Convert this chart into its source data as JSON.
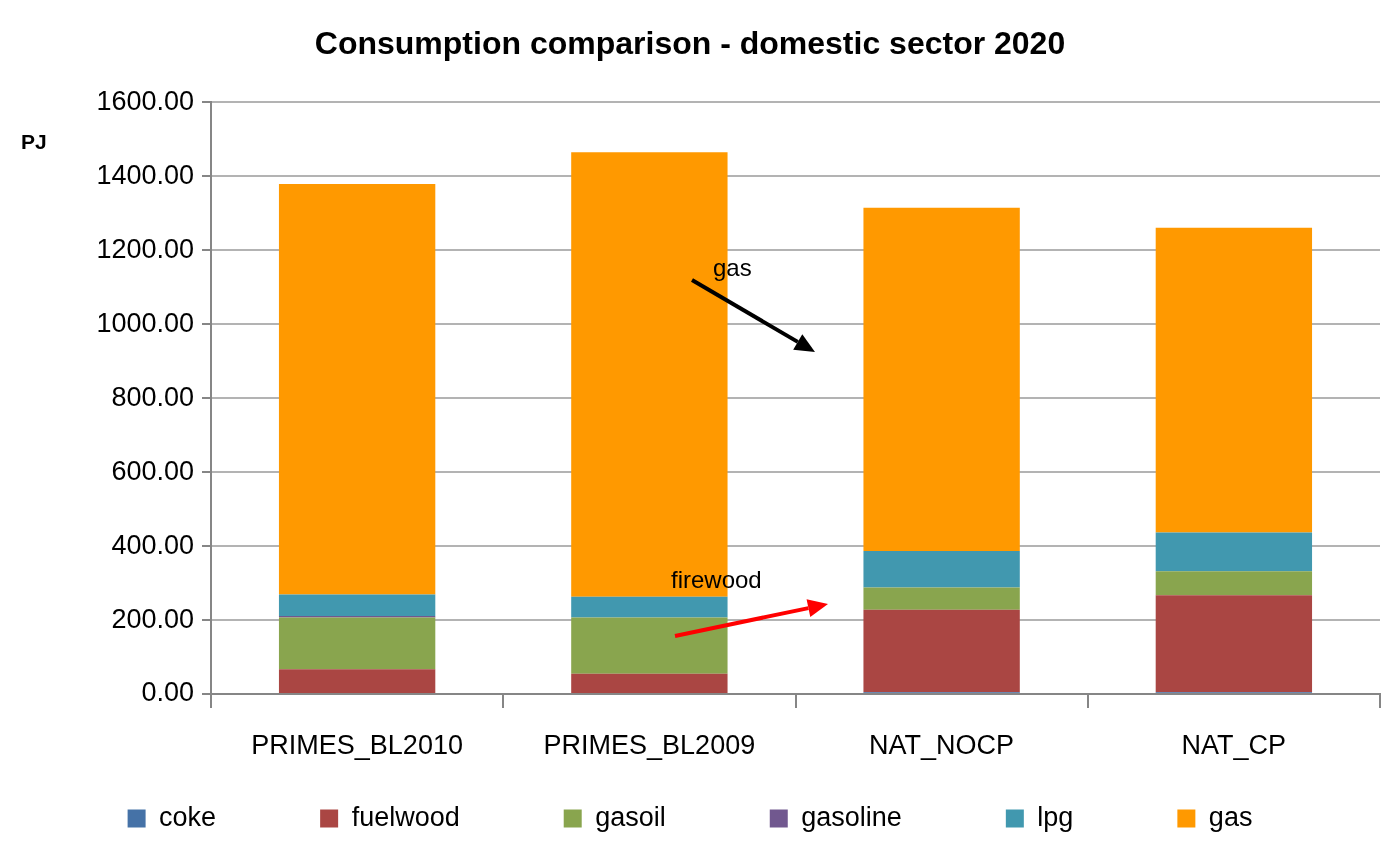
{
  "chart_data": {
    "type": "bar",
    "title": "Consumption comparison - domestic sector 2020",
    "ylabel": "PJ",
    "categories": [
      "PRIMES_BL2010",
      "PRIMES_BL2009",
      "NAT_NOCP",
      "NAT_CP"
    ],
    "series": [
      {
        "name": "coke",
        "color": "#4572a7",
        "values": [
          0,
          0,
          5,
          5
        ]
      },
      {
        "name": "fuelwood",
        "color": "#aa4643",
        "values": [
          67,
          55,
          223,
          262
        ]
      },
      {
        "name": "gasoil",
        "color": "#89a54e",
        "values": [
          140,
          152,
          60,
          65
        ]
      },
      {
        "name": "gasoline",
        "color": "#71588f",
        "values": [
          4,
          0,
          0,
          0
        ]
      },
      {
        "name": "lpg",
        "color": "#4198af",
        "values": [
          58,
          56,
          99,
          105
        ]
      },
      {
        "name": "gas",
        "color": "#ff9900",
        "values": [
          1110,
          1202,
          928,
          824
        ]
      }
    ],
    "stacked": true,
    "ylim": [
      0,
      1600
    ],
    "yticks": [
      {
        "value": 0,
        "label": "0.00"
      },
      {
        "value": 200,
        "label": "200.00"
      },
      {
        "value": 400,
        "label": "400.00"
      },
      {
        "value": 600,
        "label": "600.00"
      },
      {
        "value": 800,
        "label": "800.00"
      },
      {
        "value": 1000,
        "label": "1000.00"
      },
      {
        "value": 1200,
        "label": "1200.00"
      },
      {
        "value": 1400,
        "label": "1400.00"
      },
      {
        "value": 1600,
        "label": "1600.00"
      }
    ],
    "grid": "y",
    "legend": "bottom",
    "annotations": [
      "gas",
      "firewood"
    ]
  }
}
